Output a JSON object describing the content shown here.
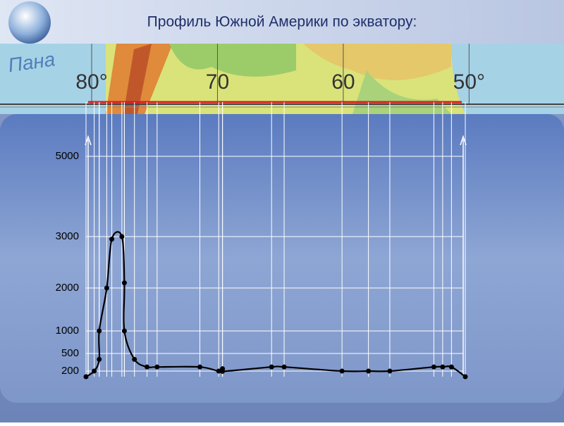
{
  "chart_data": {
    "type": "line",
    "title": "Профиль Южной Америки по экватору:",
    "map_label": "Пана",
    "x": [
      80.45,
      79.8,
      79.4,
      79.4,
      78.8,
      78.4,
      77.6,
      77.4,
      77.4,
      76.6,
      75.6,
      74.8,
      71.4,
      69.9,
      69.6,
      69.6,
      65.7,
      64.7,
      60.1,
      58.0,
      56.3,
      52.8,
      52.1,
      51.4,
      50.3
    ],
    "values": [
      0,
      200,
      400,
      1000,
      2000,
      2950,
      3000,
      2100,
      1000,
      400,
      270,
      270,
      270,
      200,
      240,
      190,
      270,
      270,
      200,
      200,
      200,
      270,
      270,
      270,
      0
    ],
    "color": "#000000",
    "xlim": [
      80.45,
      50.3
    ],
    "xticks": [
      {
        "value": 80,
        "label": "80°"
      },
      {
        "value": 70,
        "label": "70"
      },
      {
        "value": 60,
        "label": "60"
      },
      {
        "value": 50,
        "label": "50°"
      }
    ],
    "ylim": [
      0,
      5000
    ],
    "yticks": [
      200,
      500,
      1000,
      2000,
      3000,
      5000
    ],
    "grid": true
  }
}
